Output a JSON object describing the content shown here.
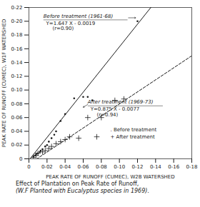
{
  "chart_data": {
    "type": "scatter",
    "xlabel": "PEAK RATE OF RUNOFF (CUMEC), W2B WATERSHED",
    "ylabel": "PEAK RATE OF RUNOFF (CUMEC), W1F WATERSHED",
    "xlim": [
      0,
      0.18
    ],
    "ylim": [
      0,
      0.22
    ],
    "xticks": [
      0,
      {
        "value": 0.02,
        "label": "0-02"
      },
      {
        "value": 0.04,
        "label": "0-04"
      },
      {
        "value": 0.06,
        "label": "0-06"
      },
      {
        "value": 0.08,
        "label": "0-08"
      },
      {
        "value": 0.1,
        "label": "0-10"
      },
      {
        "value": 0.12,
        "label": "0-12"
      },
      {
        "value": 0.14,
        "label": "0-14"
      },
      {
        "value": 0.16,
        "label": "0-16"
      },
      {
        "value": 0.18,
        "label": "0-18"
      }
    ],
    "yticks": [
      0,
      {
        "value": 0.02,
        "label": "0-02"
      },
      {
        "value": 0.04,
        "label": "0-04"
      },
      {
        "value": 0.06,
        "label": "0-06"
      },
      {
        "value": 0.08,
        "label": "0-08"
      },
      {
        "value": 0.1,
        "label": "0-10"
      },
      {
        "value": 0.12,
        "label": "0-12"
      },
      {
        "value": 0.14,
        "label": "0-14"
      },
      {
        "value": 0.16,
        "label": "0-16"
      },
      {
        "value": 0.18,
        "label": "0-18"
      },
      {
        "value": 0.2,
        "label": "0-20"
      },
      {
        "value": 0.22,
        "label": "0-22"
      }
    ],
    "grid": false,
    "series": [
      {
        "name": ". Before treatment",
        "color": "#1a1a1a",
        "marker": "dot",
        "line_style": "solid",
        "label": "Before treatment (1961-68)",
        "equation": "Y=1.647 X - 0.0019",
        "r_label": "(r=0.90)",
        "slope": 1.647,
        "intercept": -0.0019,
        "x": [
          0.005,
          0.007,
          0.008,
          0.01,
          0.012,
          0.013,
          0.015,
          0.018,
          0.02,
          0.022,
          0.025,
          0.028,
          0.03,
          0.035,
          0.04,
          0.05,
          0.06,
          0.065,
          0.07,
          0.12
        ],
        "values": [
          0.003,
          0.005,
          0.007,
          0.008,
          0.01,
          0.012,
          0.014,
          0.018,
          0.02,
          0.025,
          0.03,
          0.035,
          0.04,
          0.055,
          0.065,
          0.088,
          0.09,
          0.09,
          0.085,
          0.2
        ]
      },
      {
        "name": "+ After treatment",
        "color": "#1a1a1a",
        "marker": "plus",
        "line_style": "dashed",
        "label": "After treatment (1969-73)",
        "equation": "Y=0.875 X - 0.0077",
        "r_label": "(r=0.94)",
        "slope": 0.875,
        "intercept": -0.0077,
        "x": [
          0.005,
          0.008,
          0.01,
          0.015,
          0.018,
          0.022,
          0.025,
          0.03,
          0.035,
          0.04,
          0.045,
          0.055,
          0.065,
          0.075,
          0.08,
          0.095,
          0.105
        ],
        "values": [
          0.002,
          0.005,
          0.008,
          0.01,
          0.012,
          0.015,
          0.018,
          0.022,
          0.025,
          0.028,
          0.032,
          0.03,
          0.06,
          0.032,
          0.06,
          0.085,
          0.087
        ]
      }
    ],
    "caption": [
      "Effect of Plantation on Peak Rate of Runoff,",
      "(W.F Planted with Eucalyptus species in 1969)."
    ]
  }
}
